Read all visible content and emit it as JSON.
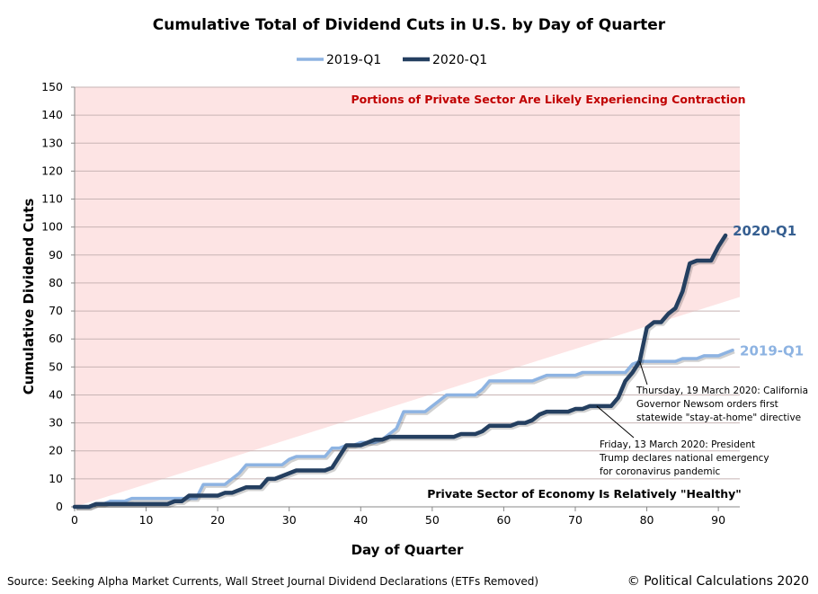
{
  "chart_data": {
    "type": "line",
    "title": "Cumulative Total of Dividend Cuts in U.S. by Day of Quarter",
    "xlabel": "Day of Quarter",
    "ylabel": "Cumulative Dividend Cuts",
    "xlim": [
      0,
      93
    ],
    "ylim": [
      0,
      150
    ],
    "xticks": [
      0,
      10,
      20,
      30,
      40,
      50,
      60,
      70,
      80,
      90
    ],
    "yticks": [
      0,
      10,
      20,
      30,
      40,
      50,
      60,
      70,
      80,
      90,
      100,
      110,
      120,
      130,
      140,
      150
    ],
    "grid": true,
    "legend": "top-center",
    "series": [
      {
        "name": "2019-Q1",
        "color": "#8db3e2",
        "end_label": "2019-Q1",
        "values": [
          0,
          0,
          0,
          1,
          1,
          2,
          2,
          2,
          3,
          3,
          3,
          3,
          3,
          3,
          3,
          3,
          3,
          3,
          8,
          8,
          8,
          8,
          10,
          12,
          15,
          15,
          15,
          15,
          15,
          15,
          17,
          18,
          18,
          18,
          18,
          18,
          21,
          21,
          22,
          22,
          23,
          23,
          23,
          24,
          26,
          28,
          34,
          34,
          34,
          34,
          36,
          38,
          40,
          40,
          40,
          40,
          40,
          42,
          45,
          45,
          45,
          45,
          45,
          45,
          45,
          46,
          47,
          47,
          47,
          47,
          47,
          48,
          48,
          48,
          48,
          48,
          48,
          48,
          51,
          52,
          52,
          52,
          52,
          52,
          52,
          53,
          53,
          53,
          54,
          54,
          54,
          55,
          56
        ]
      },
      {
        "name": "2020-Q1",
        "color": "#243f60",
        "end_label": "2020-Q1",
        "values": [
          0,
          0,
          0,
          1,
          1,
          1,
          1,
          1,
          1,
          1,
          1,
          1,
          1,
          1,
          2,
          2,
          4,
          4,
          4,
          4,
          4,
          5,
          5,
          6,
          7,
          7,
          7,
          10,
          10,
          11,
          12,
          13,
          13,
          13,
          13,
          13,
          14,
          18,
          22,
          22,
          22,
          23,
          24,
          24,
          25,
          25,
          25,
          25,
          25,
          25,
          25,
          25,
          25,
          25,
          26,
          26,
          26,
          27,
          29,
          29,
          29,
          29,
          30,
          30,
          31,
          33,
          34,
          34,
          34,
          34,
          35,
          35,
          36,
          36,
          36,
          36,
          39,
          45,
          48,
          52,
          64,
          66,
          66,
          69,
          71,
          77,
          87,
          88,
          88,
          88,
          93,
          97
        ]
      }
    ],
    "regions": {
      "upper_label": "Portions of Private Sector Are Likely Experiencing Contraction",
      "lower_label": "Private Sector of Economy Is Relatively \"Healthy\"",
      "boundary": [
        [
          0,
          0
        ],
        [
          93,
          75
        ]
      ],
      "upper_color": "#fde4e4"
    },
    "annotations": [
      {
        "day": 79,
        "value": 52,
        "lines": [
          "Thursday, 19 March 2020: California",
          "Governor Newsom orders first",
          "statewide \"stay-at-home\" directive"
        ]
      },
      {
        "day": 73,
        "value": 36,
        "lines": [
          "Friday, 13 March 2020: President",
          "Trump declares national emergency",
          "for coronavirus pandemic"
        ]
      }
    ],
    "source": "Source: Seeking Alpha Market Currents, Wall Street Journal Dividend Declarations (ETFs Removed)",
    "credit": "© Political Calculations 2020"
  }
}
